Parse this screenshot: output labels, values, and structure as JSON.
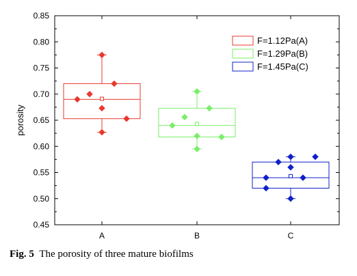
{
  "caption": {
    "label": "Fig. 5",
    "text": "The porosity of three mature biofilms"
  },
  "chart_data": {
    "type": "box",
    "title": "",
    "xlabel": "",
    "ylabel": "porosity",
    "ylim": [
      0.45,
      0.85
    ],
    "yticks": [
      "0.45",
      "0.50",
      "0.55",
      "0.60",
      "0.65",
      "0.70",
      "0.75",
      "0.80",
      "0.85"
    ],
    "categories": [
      "A",
      "B",
      "C"
    ],
    "legend_position": "top-right",
    "series": [
      {
        "name": "F=1.12Pa(A)",
        "category": "A",
        "color": "#e8392f",
        "marker": "diamond",
        "box": {
          "q1": 0.653,
          "median": 0.69,
          "q3": 0.72,
          "mean": 0.691,
          "whisker_low": 0.627,
          "whisker_high": 0.775
        },
        "points": [
          0.69,
          0.7,
          0.673,
          0.775,
          0.627,
          0.72,
          0.653
        ]
      },
      {
        "name": "F=1.29Pa(B)",
        "category": "B",
        "color": "#7aee6a",
        "marker": "diamond",
        "box": {
          "q1": 0.618,
          "median": 0.64,
          "q3": 0.673,
          "mean": 0.643,
          "whisker_low": 0.595,
          "whisker_high": 0.705
        },
        "points": [
          0.64,
          0.656,
          0.705,
          0.62,
          0.595,
          0.673,
          0.618
        ]
      },
      {
        "name": "F=1.45Pa(C)",
        "category": "C",
        "color": "#1020c8",
        "marker": "diamond",
        "box": {
          "q1": 0.52,
          "median": 0.54,
          "q3": 0.57,
          "mean": 0.543,
          "whisker_low": 0.5,
          "whisker_high": 0.58
        },
        "points": [
          0.54,
          0.57,
          0.5,
          0.56,
          0.58,
          0.54,
          0.58,
          0.52
        ]
      }
    ]
  }
}
